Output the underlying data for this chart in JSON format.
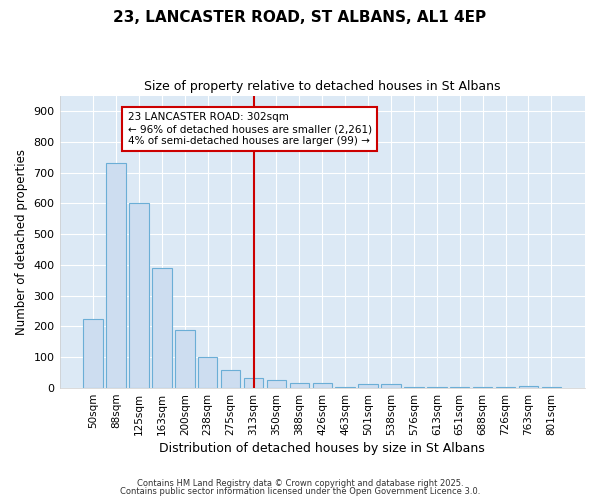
{
  "title": "23, LANCASTER ROAD, ST ALBANS, AL1 4EP",
  "subtitle": "Size of property relative to detached houses in St Albans",
  "xlabel": "Distribution of detached houses by size in St Albans",
  "ylabel": "Number of detached properties",
  "categories": [
    "50sqm",
    "88sqm",
    "125sqm",
    "163sqm",
    "200sqm",
    "238sqm",
    "275sqm",
    "313sqm",
    "350sqm",
    "388sqm",
    "426sqm",
    "463sqm",
    "501sqm",
    "538sqm",
    "576sqm",
    "613sqm",
    "651sqm",
    "688sqm",
    "726sqm",
    "763sqm",
    "801sqm"
  ],
  "values": [
    225,
    730,
    600,
    390,
    190,
    100,
    60,
    32,
    25,
    18,
    18,
    5,
    12,
    12,
    5,
    3,
    2,
    2,
    2,
    8,
    2
  ],
  "bar_color": "#cdddf0",
  "bar_edge_color": "#6baed6",
  "plot_bg_color": "#dce9f5",
  "fig_bg_color": "#ffffff",
  "vline_x_index": 7,
  "vline_color": "#cc0000",
  "annotation_title": "23 LANCASTER ROAD: 302sqm",
  "annotation_line1": "← 96% of detached houses are smaller (2,261)",
  "annotation_line2": "4% of semi-detached houses are larger (99) →",
  "annotation_box_color": "#ffffff",
  "annotation_box_edge_color": "#cc0000",
  "footer1": "Contains HM Land Registry data © Crown copyright and database right 2025.",
  "footer2": "Contains public sector information licensed under the Open Government Licence 3.0.",
  "ylim": [
    0,
    950
  ],
  "yticks": [
    0,
    100,
    200,
    300,
    400,
    500,
    600,
    700,
    800,
    900
  ]
}
